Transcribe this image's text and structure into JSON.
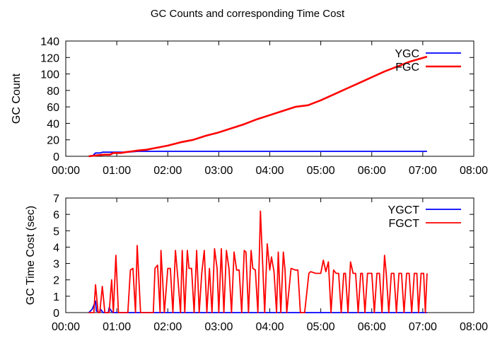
{
  "title": "GC Counts and corresponding Time Cost",
  "chart_data": [
    {
      "type": "line",
      "title": "",
      "xlabel": "",
      "ylabel": "GC Count",
      "xlim": [
        "00:00",
        "08:00"
      ],
      "xticks": [
        "00:00",
        "01:00",
        "02:00",
        "03:00",
        "04:00",
        "05:00",
        "06:00",
        "07:00",
        "08:00"
      ],
      "ylim": [
        0,
        140
      ],
      "yticks": [
        0,
        20,
        40,
        60,
        80,
        100,
        120,
        140
      ],
      "grid": false,
      "legend_position": "top-right",
      "series": [
        {
          "name": "YGC",
          "color": "#0000ff",
          "points": [
            [
              "00:27",
              0
            ],
            [
              "00:32",
              1
            ],
            [
              "00:35",
              4
            ],
            [
              "00:41",
              4
            ],
            [
              "00:43",
              5
            ],
            [
              "00:50",
              5
            ],
            [
              "00:55",
              5
            ],
            [
              "01:12",
              5
            ],
            [
              "01:25",
              6
            ],
            [
              "01:40",
              6
            ],
            [
              "02:30",
              6
            ],
            [
              "03:30",
              6
            ],
            [
              "04:30",
              6
            ],
            [
              "05:30",
              6
            ],
            [
              "06:30",
              6
            ],
            [
              "07:05",
              6
            ]
          ]
        },
        {
          "name": "FGC",
          "color": "#ff0000",
          "points": [
            [
              "00:27",
              0
            ],
            [
              "00:35",
              1
            ],
            [
              "00:45",
              2
            ],
            [
              "00:52",
              2
            ],
            [
              "00:56",
              4
            ],
            [
              "01:05",
              4
            ],
            [
              "01:10",
              5
            ],
            [
              "01:18",
              6
            ],
            [
              "01:25",
              7
            ],
            [
              "01:35",
              8
            ],
            [
              "01:45",
              10
            ],
            [
              "02:00",
              13
            ],
            [
              "02:15",
              17
            ],
            [
              "02:30",
              20
            ],
            [
              "02:45",
              25
            ],
            [
              "03:00",
              29
            ],
            [
              "03:15",
              34
            ],
            [
              "03:30",
              39
            ],
            [
              "03:45",
              45
            ],
            [
              "04:00",
              50
            ],
            [
              "04:15",
              55
            ],
            [
              "04:30",
              60
            ],
            [
              "04:45",
              62
            ],
            [
              "05:00",
              68
            ],
            [
              "05:15",
              75
            ],
            [
              "05:30",
              82
            ],
            [
              "05:45",
              89
            ],
            [
              "06:00",
              96
            ],
            [
              "06:15",
              103
            ],
            [
              "06:30",
              109
            ],
            [
              "06:45",
              115
            ],
            [
              "07:05",
              121
            ]
          ]
        }
      ]
    },
    {
      "type": "line",
      "title": "",
      "xlabel": "",
      "ylabel": "GC Time Cost (sec)",
      "xlim": [
        "00:00",
        "08:00"
      ],
      "xticks": [
        "00:00",
        "01:00",
        "02:00",
        "03:00",
        "04:00",
        "05:00",
        "06:00",
        "07:00",
        "08:00"
      ],
      "ylim": [
        0,
        7
      ],
      "yticks": [
        0,
        1,
        2,
        3,
        4,
        5,
        6,
        7
      ],
      "grid": false,
      "legend_position": "top-right",
      "series": [
        {
          "name": "YGCT",
          "color": "#0000ff",
          "points": [
            [
              "00:27",
              0
            ],
            [
              "00:31",
              0.2
            ],
            [
              "00:35",
              0.7
            ],
            [
              "00:36",
              0.1
            ],
            [
              "00:40",
              0
            ],
            [
              "00:41",
              0.2
            ],
            [
              "00:44",
              0
            ],
            [
              "00:50",
              0
            ],
            [
              "00:51",
              0.3
            ],
            [
              "00:55",
              0
            ],
            [
              "01:30",
              0
            ],
            [
              "02:30",
              0
            ],
            [
              "03:30",
              0
            ],
            [
              "04:30",
              0
            ],
            [
              "05:30",
              0
            ],
            [
              "06:30",
              0
            ],
            [
              "07:05",
              0
            ]
          ]
        },
        {
          "name": "FGCT",
          "color": "#ff0000",
          "points": [
            [
              "00:27",
              0
            ],
            [
              "00:33",
              0
            ],
            [
              "00:35",
              1.7
            ],
            [
              "00:38",
              0
            ],
            [
              "00:40",
              0
            ],
            [
              "00:43",
              1.6
            ],
            [
              "00:46",
              0
            ],
            [
              "00:51",
              0
            ],
            [
              "00:54",
              2.0
            ],
            [
              "00:56",
              0
            ],
            [
              "00:59",
              3.5
            ],
            [
              "01:02",
              0
            ],
            [
              "01:13",
              0
            ],
            [
              "01:16",
              2.6
            ],
            [
              "01:19",
              2.7
            ],
            [
              "01:22",
              0
            ],
            [
              "01:24",
              4.1
            ],
            [
              "01:28",
              0
            ],
            [
              "01:43",
              0
            ],
            [
              "01:45",
              2.7
            ],
            [
              "01:48",
              2.9
            ],
            [
              "01:51",
              0
            ],
            [
              "01:52",
              3.8
            ],
            [
              "01:54",
              2.0
            ],
            [
              "01:56",
              0
            ],
            [
              "02:00",
              2.7
            ],
            [
              "02:03",
              2.7
            ],
            [
              "02:06",
              0
            ],
            [
              "02:09",
              3.8
            ],
            [
              "02:12",
              2.0
            ],
            [
              "02:15",
              0
            ],
            [
              "02:17",
              3.8
            ],
            [
              "02:20",
              0
            ],
            [
              "02:23",
              3.8
            ],
            [
              "02:25",
              2.7
            ],
            [
              "02:28",
              2.7
            ],
            [
              "02:31",
              0
            ],
            [
              "02:34",
              3.8
            ],
            [
              "02:37",
              0
            ],
            [
              "02:40",
              2.4
            ],
            [
              "02:43",
              3.8
            ],
            [
              "02:46",
              0
            ],
            [
              "02:49",
              2.7
            ],
            [
              "02:52",
              0
            ],
            [
              "02:55",
              3.9
            ],
            [
              "02:58",
              2.7
            ],
            [
              "03:00",
              0
            ],
            [
              "03:03",
              3.9
            ],
            [
              "03:06",
              0
            ],
            [
              "03:09",
              3.8
            ],
            [
              "03:12",
              2.7
            ],
            [
              "03:15",
              0
            ],
            [
              "03:18",
              3.7
            ],
            [
              "03:21",
              2.6
            ],
            [
              "03:24",
              2.6
            ],
            [
              "03:27",
              0
            ],
            [
              "03:30",
              3.8
            ],
            [
              "03:32",
              3.7
            ],
            [
              "03:35",
              0
            ],
            [
              "03:38",
              3.8
            ],
            [
              "03:40",
              2.7
            ],
            [
              "03:43",
              2.6
            ],
            [
              "03:46",
              0
            ],
            [
              "03:49",
              6.2
            ],
            [
              "03:52",
              2.5
            ],
            [
              "03:54",
              0
            ],
            [
              "03:57",
              4.2
            ],
            [
              "04:00",
              2.6
            ],
            [
              "04:02",
              3.4
            ],
            [
              "04:05",
              2.5
            ],
            [
              "04:08",
              0
            ],
            [
              "04:10",
              3.7
            ],
            [
              "04:13",
              0
            ],
            [
              "04:16",
              3.7
            ],
            [
              "04:18",
              2.6
            ],
            [
              "04:20",
              0
            ],
            [
              "04:25",
              2.7
            ],
            [
              "04:30",
              2.6
            ],
            [
              "04:33",
              2.6
            ],
            [
              "04:36",
              0
            ],
            [
              "04:41",
              0
            ],
            [
              "04:46",
              2.4
            ],
            [
              "04:48",
              2.5
            ],
            [
              "04:54",
              2.4
            ],
            [
              "05:00",
              2.4
            ],
            [
              "05:03",
              3.2
            ],
            [
              "05:06",
              2.5
            ],
            [
              "05:09",
              3.1
            ],
            [
              "05:12",
              0
            ],
            [
              "05:15",
              2.6
            ],
            [
              "05:18",
              2.4
            ],
            [
              "05:21",
              2.4
            ],
            [
              "05:24",
              0
            ],
            [
              "05:27",
              2.4
            ],
            [
              "05:29",
              2.4
            ],
            [
              "05:32",
              0
            ],
            [
              "05:35",
              3.1
            ],
            [
              "05:38",
              2.4
            ],
            [
              "05:41",
              2.4
            ],
            [
              "05:44",
              0
            ],
            [
              "05:47",
              2.4
            ],
            [
              "05:49",
              2.4
            ],
            [
              "05:52",
              0
            ],
            [
              "05:55",
              2.4
            ],
            [
              "06:00",
              2.4
            ],
            [
              "06:03",
              0
            ],
            [
              "06:06",
              2.4
            ],
            [
              "06:09",
              2.4
            ],
            [
              "06:12",
              0
            ],
            [
              "06:15",
              3.5
            ],
            [
              "06:17",
              2.4
            ],
            [
              "06:20",
              0
            ],
            [
              "06:23",
              2.4
            ],
            [
              "06:26",
              2.4
            ],
            [
              "06:29",
              0
            ],
            [
              "06:32",
              2.4
            ],
            [
              "06:35",
              2.4
            ],
            [
              "06:38",
              0
            ],
            [
              "06:41",
              2.4
            ],
            [
              "06:44",
              2.4
            ],
            [
              "06:47",
              0
            ],
            [
              "06:50",
              2.4
            ],
            [
              "06:53",
              2.4
            ],
            [
              "06:55",
              0
            ],
            [
              "06:58",
              2.4
            ],
            [
              "07:01",
              2.4
            ],
            [
              "07:03",
              0
            ],
            [
              "07:05",
              2.4
            ]
          ]
        }
      ]
    }
  ]
}
